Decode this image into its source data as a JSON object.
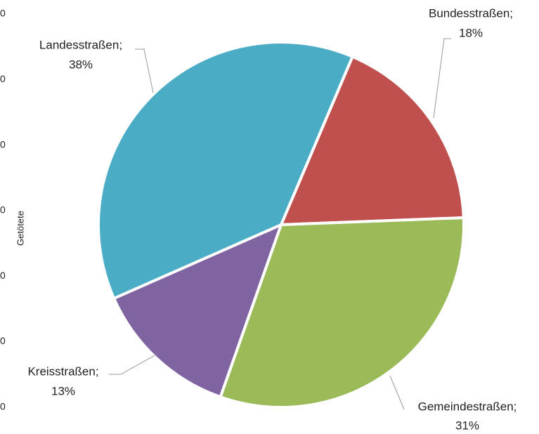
{
  "chart_data": {
    "type": "pie",
    "categories": [
      "Bundesstraßen;",
      "Gemeindestraßen;",
      "Kreisstraßen;",
      "Landesstraßen;"
    ],
    "values": [
      18,
      31,
      13,
      38
    ],
    "value_labels": [
      "18%",
      "31%",
      "13%",
      "38%"
    ],
    "colors": [
      "#c0504d",
      "#9bbb59",
      "#8064a2",
      "#4bacc6"
    ],
    "start_angle": 23,
    "ylabel": "Getötete",
    "left_labels": [
      "0",
      "0",
      "0",
      "0",
      "0",
      "0",
      "0"
    ]
  }
}
